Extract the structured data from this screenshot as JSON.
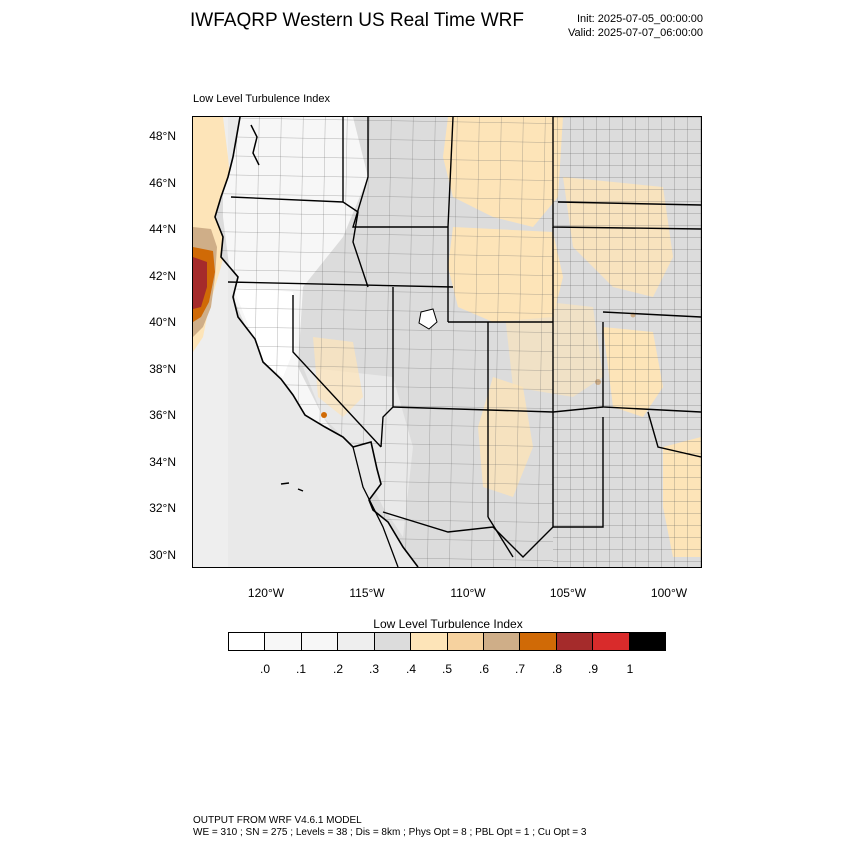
{
  "header": {
    "title": "IWFAQRP Western US Real Time WRF",
    "init": "Init: 2025-07-05_00:00:00",
    "valid": "Valid: 2025-07-07_06:00:00"
  },
  "panel": {
    "label": "Low Level Turbulence Index"
  },
  "map": {
    "lat_labels": [
      "48°N",
      "46°N",
      "44°N",
      "42°N",
      "40°N",
      "38°N",
      "36°N",
      "34°N",
      "32°N",
      "30°N"
    ],
    "lon_labels": [
      "120°W",
      "115°W",
      "110°W",
      "105°W",
      "100°W"
    ],
    "colors": {
      "ocean_band": "#f3f3f3",
      "land_base": "#dcdcdc",
      "plains_orange": "#fde5b8",
      "coast_orange": "#d97c12",
      "coast_red": "#a03226",
      "coast_tan": "#cfae88",
      "pacific_nw_white": "#ffffff",
      "county_lines": "#555555",
      "state_lines": "#000000"
    }
  },
  "legend": {
    "title": "Low Level Turbulence Index",
    "colors": [
      "#ffffff",
      "#f7f7f7",
      "#eeeeee",
      "#dcdcdc",
      "#fde4b8",
      "#f6d29f",
      "#cfae88",
      "#d06a06",
      "#a52b2b",
      "#d92b2b",
      "#000000"
    ],
    "labels": [
      ".0",
      ".1",
      ".2",
      ".3",
      ".4",
      ".5",
      ".6",
      ".7",
      ".8",
      ".9",
      "1"
    ]
  },
  "footer": {
    "model": "OUTPUT FROM WRF V4.6.1 MODEL",
    "config": "WE = 310 ; SN = 275 ; Levels = 38 ; Dis = 8km ; Phys Opt = 8 ; PBL Opt = 1 ; Cu Opt = 3"
  }
}
